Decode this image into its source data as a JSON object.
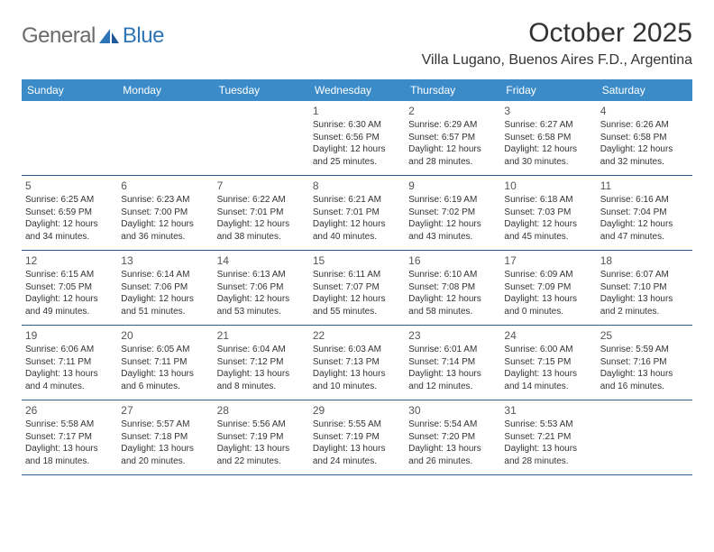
{
  "logo": {
    "text1": "General",
    "text2": "Blue"
  },
  "title": "October 2025",
  "location": "Villa Lugano, Buenos Aires F.D., Argentina",
  "colors": {
    "header_bg": "#3b8bc8",
    "header_text": "#ffffff",
    "week_border": "#2e5c8a",
    "logo_gray": "#6b6b6b",
    "logo_blue": "#2e75b6",
    "text": "#333333"
  },
  "day_names": [
    "Sunday",
    "Monday",
    "Tuesday",
    "Wednesday",
    "Thursday",
    "Friday",
    "Saturday"
  ],
  "weeks": [
    [
      null,
      null,
      null,
      {
        "d": "1",
        "sr": "6:30 AM",
        "ss": "6:56 PM",
        "dl": "12 hours and 25 minutes."
      },
      {
        "d": "2",
        "sr": "6:29 AM",
        "ss": "6:57 PM",
        "dl": "12 hours and 28 minutes."
      },
      {
        "d": "3",
        "sr": "6:27 AM",
        "ss": "6:58 PM",
        "dl": "12 hours and 30 minutes."
      },
      {
        "d": "4",
        "sr": "6:26 AM",
        "ss": "6:58 PM",
        "dl": "12 hours and 32 minutes."
      }
    ],
    [
      {
        "d": "5",
        "sr": "6:25 AM",
        "ss": "6:59 PM",
        "dl": "12 hours and 34 minutes."
      },
      {
        "d": "6",
        "sr": "6:23 AM",
        "ss": "7:00 PM",
        "dl": "12 hours and 36 minutes."
      },
      {
        "d": "7",
        "sr": "6:22 AM",
        "ss": "7:01 PM",
        "dl": "12 hours and 38 minutes."
      },
      {
        "d": "8",
        "sr": "6:21 AM",
        "ss": "7:01 PM",
        "dl": "12 hours and 40 minutes."
      },
      {
        "d": "9",
        "sr": "6:19 AM",
        "ss": "7:02 PM",
        "dl": "12 hours and 43 minutes."
      },
      {
        "d": "10",
        "sr": "6:18 AM",
        "ss": "7:03 PM",
        "dl": "12 hours and 45 minutes."
      },
      {
        "d": "11",
        "sr": "6:16 AM",
        "ss": "7:04 PM",
        "dl": "12 hours and 47 minutes."
      }
    ],
    [
      {
        "d": "12",
        "sr": "6:15 AM",
        "ss": "7:05 PM",
        "dl": "12 hours and 49 minutes."
      },
      {
        "d": "13",
        "sr": "6:14 AM",
        "ss": "7:06 PM",
        "dl": "12 hours and 51 minutes."
      },
      {
        "d": "14",
        "sr": "6:13 AM",
        "ss": "7:06 PM",
        "dl": "12 hours and 53 minutes."
      },
      {
        "d": "15",
        "sr": "6:11 AM",
        "ss": "7:07 PM",
        "dl": "12 hours and 55 minutes."
      },
      {
        "d": "16",
        "sr": "6:10 AM",
        "ss": "7:08 PM",
        "dl": "12 hours and 58 minutes."
      },
      {
        "d": "17",
        "sr": "6:09 AM",
        "ss": "7:09 PM",
        "dl": "13 hours and 0 minutes."
      },
      {
        "d": "18",
        "sr": "6:07 AM",
        "ss": "7:10 PM",
        "dl": "13 hours and 2 minutes."
      }
    ],
    [
      {
        "d": "19",
        "sr": "6:06 AM",
        "ss": "7:11 PM",
        "dl": "13 hours and 4 minutes."
      },
      {
        "d": "20",
        "sr": "6:05 AM",
        "ss": "7:11 PM",
        "dl": "13 hours and 6 minutes."
      },
      {
        "d": "21",
        "sr": "6:04 AM",
        "ss": "7:12 PM",
        "dl": "13 hours and 8 minutes."
      },
      {
        "d": "22",
        "sr": "6:03 AM",
        "ss": "7:13 PM",
        "dl": "13 hours and 10 minutes."
      },
      {
        "d": "23",
        "sr": "6:01 AM",
        "ss": "7:14 PM",
        "dl": "13 hours and 12 minutes."
      },
      {
        "d": "24",
        "sr": "6:00 AM",
        "ss": "7:15 PM",
        "dl": "13 hours and 14 minutes."
      },
      {
        "d": "25",
        "sr": "5:59 AM",
        "ss": "7:16 PM",
        "dl": "13 hours and 16 minutes."
      }
    ],
    [
      {
        "d": "26",
        "sr": "5:58 AM",
        "ss": "7:17 PM",
        "dl": "13 hours and 18 minutes."
      },
      {
        "d": "27",
        "sr": "5:57 AM",
        "ss": "7:18 PM",
        "dl": "13 hours and 20 minutes."
      },
      {
        "d": "28",
        "sr": "5:56 AM",
        "ss": "7:19 PM",
        "dl": "13 hours and 22 minutes."
      },
      {
        "d": "29",
        "sr": "5:55 AM",
        "ss": "7:19 PM",
        "dl": "13 hours and 24 minutes."
      },
      {
        "d": "30",
        "sr": "5:54 AM",
        "ss": "7:20 PM",
        "dl": "13 hours and 26 minutes."
      },
      {
        "d": "31",
        "sr": "5:53 AM",
        "ss": "7:21 PM",
        "dl": "13 hours and 28 minutes."
      },
      null
    ]
  ],
  "labels": {
    "sunrise": "Sunrise:",
    "sunset": "Sunset:",
    "daylight": "Daylight:"
  }
}
